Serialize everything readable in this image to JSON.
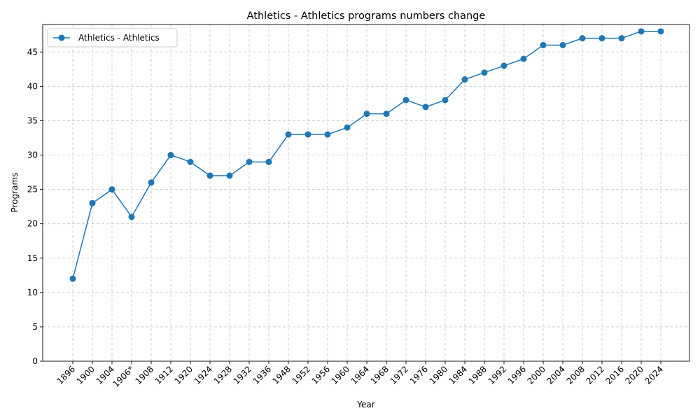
{
  "chart_data": {
    "type": "line",
    "title": "Athletics - Athletics programs numbers change",
    "xlabel": "Year",
    "ylabel": "Programs",
    "categories": [
      "1896",
      "1900",
      "1904",
      "1906*",
      "1908",
      "1912",
      "1920",
      "1924",
      "1928",
      "1932",
      "1936",
      "1948",
      "1952",
      "1956",
      "1960",
      "1964",
      "1968",
      "1972",
      "1976",
      "1980",
      "1984",
      "1988",
      "1992",
      "1996",
      "2000",
      "2004",
      "2008",
      "2012",
      "2016",
      "2020",
      "2024"
    ],
    "series": [
      {
        "name": "Athletics - Athletics",
        "color": "#1f77b4",
        "values": [
          12,
          23,
          25,
          21,
          26,
          30,
          29,
          27,
          27,
          29,
          29,
          33,
          33,
          33,
          34,
          36,
          36,
          38,
          37,
          38,
          41,
          42,
          43,
          44,
          46,
          46,
          47,
          47,
          47,
          48,
          48
        ]
      }
    ],
    "ylim": [
      0,
      49
    ],
    "yticks": [
      0,
      5,
      10,
      15,
      20,
      25,
      30,
      35,
      40,
      45
    ],
    "grid": true,
    "legend": "top-left"
  }
}
